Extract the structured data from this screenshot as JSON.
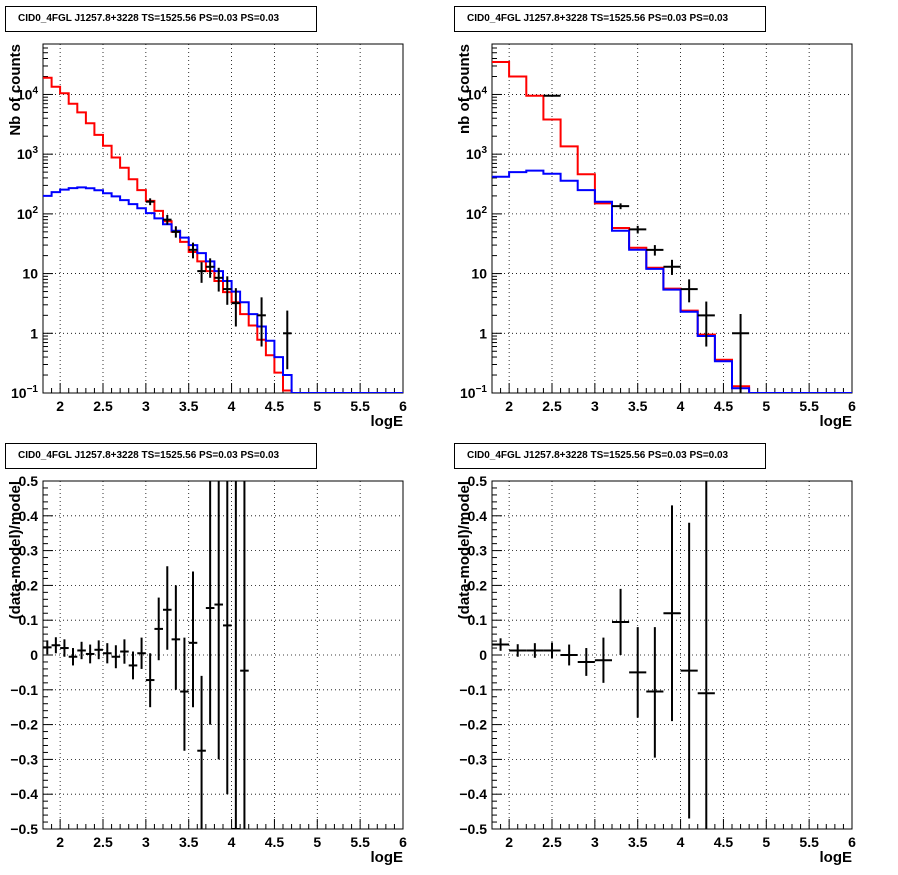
{
  "chart_data": [
    {
      "type": "line",
      "title": "CID0_4FGL J1257.8+3228 TS=1525.56 PS=0.03 PS=0.03",
      "xlabel": "logE",
      "ylabel": "Nb of counts",
      "yscale": "log",
      "xlim": [
        1.8,
        6.0
      ],
      "ylim": [
        0.1,
        70000
      ],
      "grid": true,
      "xtick_labels": [
        "2",
        "2.5",
        "3",
        "3.5",
        "4",
        "4.5",
        "5",
        "5.5",
        "6"
      ],
      "ytick_labels": [
        "10^-1",
        "1",
        "10",
        "10^2",
        "10^3",
        "10^4"
      ],
      "bin_edges": [
        1.8,
        1.9,
        2.0,
        2.1,
        2.2,
        2.3,
        2.4,
        2.5,
        2.6,
        2.7,
        2.8,
        2.9,
        3.0,
        3.1,
        3.2,
        3.3,
        3.4,
        3.5,
        3.6,
        3.7,
        3.8,
        3.9,
        4.0,
        4.1,
        4.2,
        4.3,
        4.4,
        4.5,
        4.6,
        4.7,
        4.8,
        4.9,
        5.0,
        5.1,
        5.2,
        5.3,
        5.4,
        5.5,
        5.6,
        5.7,
        5.8,
        5.9,
        6.0
      ],
      "series": [
        {
          "color": "#ff0000",
          "style": "step",
          "values": [
            19000,
            13500,
            10500,
            7000,
            5000,
            3300,
            2100,
            1380,
            880,
            590,
            380,
            250,
            165,
            112,
            75,
            50,
            34,
            23,
            16,
            11,
            7.5,
            4.9,
            3.3,
            2.1,
            1.35,
            0.78,
            0.43,
            0.22,
            0.11,
            0.1,
            0.1,
            0.1,
            0.1,
            0.1,
            0.1,
            0.1,
            0.1,
            0.1,
            0.1,
            0.1,
            0.1,
            0.1
          ]
        },
        {
          "color": "#0000ff",
          "style": "step",
          "values": [
            200,
            232,
            255,
            270,
            278,
            268,
            248,
            222,
            196,
            170,
            146,
            124,
            103,
            84,
            67,
            52,
            40,
            30,
            22,
            16,
            11,
            7.5,
            5.0,
            3.3,
            2.1,
            1.3,
            0.75,
            0.4,
            0.2,
            0.1,
            0.1,
            0.1,
            0.1,
            0.1,
            0.1,
            0.1,
            0.1,
            0.1,
            0.1,
            0.1,
            0.1,
            0.1
          ]
        },
        {
          "color": "#000000",
          "style": "errorbar",
          "points": [
            {
              "x": 3.05,
              "y": 160,
              "xerr": 0.05,
              "ylo": 140,
              "yhi": 182
            },
            {
              "x": 3.25,
              "y": 80,
              "xerr": 0.05,
              "ylo": 66,
              "yhi": 96
            },
            {
              "x": 3.35,
              "y": 50,
              "xerr": 0.05,
              "ylo": 40,
              "yhi": 62
            },
            {
              "x": 3.55,
              "y": 25,
              "xerr": 0.05,
              "ylo": 18,
              "yhi": 33
            },
            {
              "x": 3.65,
              "y": 11,
              "xerr": 0.05,
              "ylo": 7,
              "yhi": 15.5
            },
            {
              "x": 3.75,
              "y": 13,
              "xerr": 0.05,
              "ylo": 8.5,
              "yhi": 18
            },
            {
              "x": 3.85,
              "y": 8.5,
              "xerr": 0.05,
              "ylo": 5,
              "yhi": 12.5
            },
            {
              "x": 3.95,
              "y": 5.5,
              "xerr": 0.05,
              "ylo": 3,
              "yhi": 9
            },
            {
              "x": 4.05,
              "y": 3.2,
              "xerr": 0.05,
              "ylo": 1.3,
              "yhi": 5.7
            },
            {
              "x": 4.35,
              "y": 2.0,
              "xerr": 0.05,
              "ylo": 0.6,
              "yhi": 4.0
            },
            {
              "x": 4.65,
              "y": 1.0,
              "xerr": 0.05,
              "ylo": 0.25,
              "yhi": 2.4
            }
          ]
        }
      ]
    },
    {
      "type": "line",
      "title": "CID0_4FGL J1257.8+3228 TS=1525.56 PS=0.03 PS=0.03",
      "xlabel": "logE",
      "ylabel": "nb of counts",
      "yscale": "log",
      "xlim": [
        1.8,
        6.0
      ],
      "ylim": [
        0.1,
        70000
      ],
      "grid": true,
      "xtick_labels": [
        "2",
        "2.5",
        "3",
        "3.5",
        "4",
        "4.5",
        "5",
        "5.5",
        "6"
      ],
      "ytick_labels": [
        "10^-1",
        "1",
        "10",
        "10^2",
        "10^3",
        "10^4"
      ],
      "bin_edges": [
        1.8,
        2.0,
        2.2,
        2.4,
        2.6,
        2.8,
        3.0,
        3.2,
        3.4,
        3.6,
        3.8,
        4.0,
        4.2,
        4.4,
        4.6,
        4.8,
        5.0,
        5.2,
        5.4,
        5.6,
        5.8,
        6.0
      ],
      "series": [
        {
          "color": "#ff0000",
          "style": "step",
          "values": [
            35000,
            20000,
            9500,
            3800,
            1350,
            460,
            150,
            58,
            27,
            12.5,
            5.6,
            2.4,
            0.95,
            0.36,
            0.13,
            0.1,
            0.1,
            0.1,
            0.1,
            0.1,
            0.1
          ]
        },
        {
          "color": "#0000ff",
          "style": "step",
          "values": [
            420,
            500,
            530,
            470,
            360,
            250,
            160,
            52,
            25,
            12,
            5.4,
            2.3,
            0.9,
            0.34,
            0.12,
            0.1,
            0.1,
            0.1,
            0.1,
            0.1,
            0.1
          ]
        },
        {
          "color": "#000000",
          "style": "errorbar",
          "points": [
            {
              "x": 2.5,
              "y": 9500,
              "xerr": 0.1,
              "ylo": 9300,
              "yhi": 9700
            },
            {
              "x": 3.3,
              "y": 135,
              "xerr": 0.1,
              "ylo": 120,
              "yhi": 150
            },
            {
              "x": 3.5,
              "y": 55,
              "xerr": 0.1,
              "ylo": 47,
              "yhi": 63
            },
            {
              "x": 3.7,
              "y": 25,
              "xerr": 0.1,
              "ylo": 20,
              "yhi": 30
            },
            {
              "x": 3.9,
              "y": 13,
              "xerr": 0.1,
              "ylo": 9.5,
              "yhi": 17
            },
            {
              "x": 4.1,
              "y": 5.5,
              "xerr": 0.1,
              "ylo": 3.3,
              "yhi": 8
            },
            {
              "x": 4.3,
              "y": 2.0,
              "xerr": 0.1,
              "ylo": 0.6,
              "yhi": 3.4
            },
            {
              "x": 4.7,
              "y": 1.0,
              "xerr": 0.1,
              "ylo": 0.1,
              "yhi": 2.1
            }
          ]
        }
      ]
    },
    {
      "type": "scatter",
      "title": "CID0_4FGL J1257.8+3228 TS=1525.56 PS=0.03 PS=0.03",
      "xlabel": "logE",
      "ylabel": "(data-model)/model",
      "xlim": [
        1.8,
        6.0
      ],
      "ylim": [
        -0.5,
        0.5
      ],
      "grid": true,
      "xtick_labels": [
        "2",
        "2.5",
        "3",
        "3.5",
        "4",
        "4.5",
        "5",
        "5.5",
        "6"
      ],
      "ytick_labels": [
        "−0.5",
        "−0.4",
        "−0.3",
        "−0.2",
        "−0.1",
        "0",
        "0.1",
        "0.2",
        "0.3",
        "0.4",
        "0.5"
      ],
      "series": [
        {
          "color": "#000000",
          "style": "errorbar",
          "points": [
            {
              "x": 1.85,
              "y": 0.022,
              "xerr": 0.05,
              "ylo": 0.002,
              "yhi": 0.042
            },
            {
              "x": 1.95,
              "y": 0.028,
              "xerr": 0.05,
              "ylo": 0.005,
              "yhi": 0.051
            },
            {
              "x": 2.05,
              "y": 0.02,
              "xerr": 0.05,
              "ylo": -0.005,
              "yhi": 0.045
            },
            {
              "x": 2.15,
              "y": -0.005,
              "xerr": 0.05,
              "ylo": -0.03,
              "yhi": 0.02
            },
            {
              "x": 2.25,
              "y": 0.013,
              "xerr": 0.05,
              "ylo": -0.012,
              "yhi": 0.038
            },
            {
              "x": 2.35,
              "y": 0.003,
              "xerr": 0.05,
              "ylo": -0.024,
              "yhi": 0.03
            },
            {
              "x": 2.45,
              "y": 0.015,
              "xerr": 0.05,
              "ylo": -0.012,
              "yhi": 0.042
            },
            {
              "x": 2.55,
              "y": 0.005,
              "xerr": 0.05,
              "ylo": -0.024,
              "yhi": 0.034
            },
            {
              "x": 2.65,
              "y": -0.005,
              "xerr": 0.05,
              "ylo": -0.038,
              "yhi": 0.028
            },
            {
              "x": 2.75,
              "y": 0.01,
              "xerr": 0.05,
              "ylo": -0.025,
              "yhi": 0.045
            },
            {
              "x": 2.85,
              "y": -0.03,
              "xerr": 0.05,
              "ylo": -0.07,
              "yhi": 0.01
            },
            {
              "x": 2.95,
              "y": 0.005,
              "xerr": 0.05,
              "ylo": -0.04,
              "yhi": 0.05
            },
            {
              "x": 3.05,
              "y": -0.072,
              "xerr": 0.05,
              "ylo": -0.15,
              "yhi": 0.005
            },
            {
              "x": 3.15,
              "y": 0.075,
              "xerr": 0.05,
              "ylo": -0.015,
              "yhi": 0.165
            },
            {
              "x": 3.25,
              "y": 0.13,
              "xerr": 0.05,
              "ylo": 0.015,
              "yhi": 0.255
            },
            {
              "x": 3.35,
              "y": 0.045,
              "xerr": 0.05,
              "ylo": -0.1,
              "yhi": 0.2
            },
            {
              "x": 3.45,
              "y": -0.105,
              "xerr": 0.05,
              "ylo": -0.275,
              "yhi": 0.05
            },
            {
              "x": 3.55,
              "y": 0.035,
              "xerr": 0.05,
              "ylo": -0.15,
              "yhi": 0.24
            },
            {
              "x": 3.65,
              "y": -0.275,
              "xerr": 0.05,
              "ylo": -0.5,
              "yhi": -0.06
            },
            {
              "x": 3.75,
              "y": 0.135,
              "xerr": 0.05,
              "ylo": -0.2,
              "yhi": 0.5
            },
            {
              "x": 3.85,
              "y": 0.145,
              "xerr": 0.05,
              "ylo": -0.3,
              "yhi": 0.5
            },
            {
              "x": 3.95,
              "y": 0.085,
              "xerr": 0.05,
              "ylo": -0.4,
              "yhi": 0.5
            },
            {
              "x": 4.05,
              "y": -0.5,
              "xerr": 0.05,
              "ylo": -0.5,
              "yhi": 0.5
            },
            {
              "x": 4.15,
              "y": -0.045,
              "xerr": 0.05,
              "ylo": -0.5,
              "yhi": 0.5
            }
          ]
        }
      ]
    },
    {
      "type": "scatter",
      "title": "CID0_4FGL J1257.8+3228 TS=1525.56 PS=0.03 PS=0.03",
      "xlabel": "logE",
      "ylabel": "(data-model)/model",
      "xlim": [
        1.8,
        6.0
      ],
      "ylim": [
        -0.5,
        0.5
      ],
      "grid": true,
      "xtick_labels": [
        "2",
        "2.5",
        "3",
        "3.5",
        "4",
        "4.5",
        "5",
        "5.5",
        "6"
      ],
      "ytick_labels": [
        "−0.5",
        "−0.4",
        "−0.3",
        "−0.2",
        "−0.1",
        "0",
        "0.1",
        "0.2",
        "0.3",
        "0.4",
        "0.5"
      ],
      "series": [
        {
          "color": "#000000",
          "style": "errorbar",
          "points": [
            {
              "x": 1.9,
              "y": 0.03,
              "xerr": 0.1,
              "ylo": 0.012,
              "yhi": 0.048
            },
            {
              "x": 2.1,
              "y": 0.013,
              "xerr": 0.1,
              "ylo": -0.005,
              "yhi": 0.031
            },
            {
              "x": 2.3,
              "y": 0.013,
              "xerr": 0.1,
              "ylo": -0.008,
              "yhi": 0.034
            },
            {
              "x": 2.5,
              "y": 0.013,
              "xerr": 0.1,
              "ylo": -0.01,
              "yhi": 0.036
            },
            {
              "x": 2.7,
              "y": 0.0,
              "xerr": 0.1,
              "ylo": -0.03,
              "yhi": 0.03
            },
            {
              "x": 2.9,
              "y": -0.02,
              "xerr": 0.1,
              "ylo": -0.06,
              "yhi": 0.02
            },
            {
              "x": 3.1,
              "y": -0.015,
              "xerr": 0.1,
              "ylo": -0.08,
              "yhi": 0.05
            },
            {
              "x": 3.3,
              "y": 0.095,
              "xerr": 0.1,
              "ylo": 0.0,
              "yhi": 0.19
            },
            {
              "x": 3.5,
              "y": -0.05,
              "xerr": 0.1,
              "ylo": -0.18,
              "yhi": 0.08
            },
            {
              "x": 3.7,
              "y": -0.105,
              "xerr": 0.1,
              "ylo": -0.295,
              "yhi": 0.08
            },
            {
              "x": 3.9,
              "y": 0.12,
              "xerr": 0.1,
              "ylo": -0.19,
              "yhi": 0.43
            },
            {
              "x": 4.1,
              "y": -0.045,
              "xerr": 0.1,
              "ylo": -0.47,
              "yhi": 0.38
            },
            {
              "x": 4.3,
              "y": -0.11,
              "xerr": 0.1,
              "ylo": -0.5,
              "yhi": 0.5
            }
          ]
        }
      ]
    }
  ]
}
